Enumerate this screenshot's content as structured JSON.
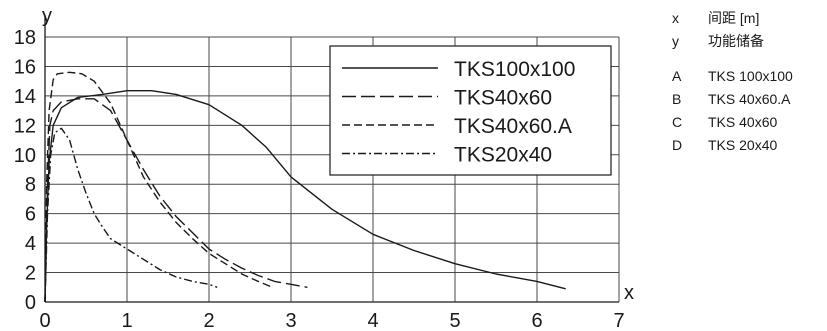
{
  "chart_data": {
    "type": "line",
    "xlabel": "x",
    "ylabel": "y",
    "xlim": [
      0,
      7
    ],
    "ylim": [
      0,
      18
    ],
    "x_ticks": [
      "0",
      "1",
      "2",
      "3",
      "4",
      "5",
      "6",
      "7"
    ],
    "y_ticks": [
      "0",
      "2",
      "4",
      "6",
      "8",
      "10",
      "12",
      "14",
      "16",
      "18"
    ],
    "grid": true,
    "legend_position": "top-right",
    "series": [
      {
        "name": "TKS100x100",
        "dash": "solid",
        "points": [
          [
            0,
            0
          ],
          [
            0.02,
            5
          ],
          [
            0.05,
            9.5
          ],
          [
            0.1,
            12
          ],
          [
            0.2,
            13.2
          ],
          [
            0.4,
            13.9
          ],
          [
            0.7,
            14.1
          ],
          [
            1.0,
            14.35
          ],
          [
            1.3,
            14.35
          ],
          [
            1.6,
            14.1
          ],
          [
            2.0,
            13.4
          ],
          [
            2.4,
            12
          ],
          [
            2.7,
            10.5
          ],
          [
            3.0,
            8.5
          ],
          [
            3.5,
            6.3
          ],
          [
            4.0,
            4.6
          ],
          [
            4.5,
            3.5
          ],
          [
            5.0,
            2.6
          ],
          [
            5.5,
            1.9
          ],
          [
            6.0,
            1.4
          ],
          [
            6.35,
            0.9
          ]
        ]
      },
      {
        "name": "TKS40x60",
        "dash": "longdash",
        "points": [
          [
            0,
            0
          ],
          [
            0.03,
            8
          ],
          [
            0.06,
            12
          ],
          [
            0.1,
            13
          ],
          [
            0.2,
            13.6
          ],
          [
            0.4,
            13.8
          ],
          [
            0.6,
            13.8
          ],
          [
            0.8,
            13
          ],
          [
            1.0,
            11
          ],
          [
            1.2,
            9
          ],
          [
            1.4,
            7.2
          ],
          [
            1.6,
            5.8
          ],
          [
            1.8,
            4.7
          ],
          [
            2.0,
            3.6
          ],
          [
            2.2,
            2.9
          ],
          [
            2.4,
            2.3
          ],
          [
            2.6,
            1.8
          ],
          [
            2.8,
            1.4
          ],
          [
            3.0,
            1.2
          ],
          [
            3.2,
            1.0
          ]
        ]
      },
      {
        "name": "TKS40x60.A",
        "dash": "dash",
        "points": [
          [
            0,
            0
          ],
          [
            0.02,
            8
          ],
          [
            0.05,
            13
          ],
          [
            0.1,
            15.1
          ],
          [
            0.15,
            15.5
          ],
          [
            0.3,
            15.6
          ],
          [
            0.45,
            15.5
          ],
          [
            0.6,
            15
          ],
          [
            0.8,
            13.5
          ],
          [
            1.0,
            11
          ],
          [
            1.2,
            8.5
          ],
          [
            1.4,
            6.8
          ],
          [
            1.6,
            5.4
          ],
          [
            1.8,
            4.3
          ],
          [
            2.0,
            3.3
          ],
          [
            2.2,
            2.6
          ],
          [
            2.4,
            1.9
          ],
          [
            2.6,
            1.4
          ],
          [
            2.75,
            1.05
          ]
        ]
      },
      {
        "name": "TKS20x40",
        "dash": "dashdot",
        "points": [
          [
            0,
            0
          ],
          [
            0.03,
            6
          ],
          [
            0.07,
            10
          ],
          [
            0.12,
            11.5
          ],
          [
            0.2,
            11.8
          ],
          [
            0.3,
            11
          ],
          [
            0.4,
            9
          ],
          [
            0.5,
            7.4
          ],
          [
            0.6,
            6
          ],
          [
            0.7,
            5.1
          ],
          [
            0.8,
            4.3
          ],
          [
            1.0,
            3.6
          ],
          [
            1.2,
            2.9
          ],
          [
            1.4,
            2.2
          ],
          [
            1.6,
            1.7
          ],
          [
            1.8,
            1.4
          ],
          [
            2.0,
            1.2
          ],
          [
            2.1,
            1.0
          ]
        ]
      }
    ]
  },
  "side_legend": {
    "axes": [
      {
        "key": "x",
        "text": "间距 [m]"
      },
      {
        "key": "y",
        "text": "功能储备"
      }
    ],
    "curves": [
      {
        "key": "A",
        "text": "TKS 100x100"
      },
      {
        "key": "B",
        "text": "TKS 40x60.A"
      },
      {
        "key": "C",
        "text": "TKS 40x60"
      },
      {
        "key": "D",
        "text": "TKS 20x40"
      }
    ]
  }
}
